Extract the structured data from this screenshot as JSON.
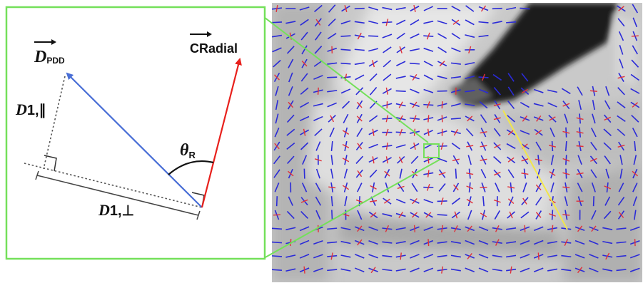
{
  "diagram": {
    "vector_pdd": {
      "main": "D",
      "sub": "PDD"
    },
    "vector_cradial": {
      "main": "CRadial"
    },
    "angle": {
      "main": "θ",
      "sub": "R"
    },
    "component_parallel": {
      "main": "D",
      "rest": "1,∥"
    },
    "component_perp": {
      "main": "D",
      "rest": "1,⊥"
    }
  },
  "colors": {
    "pdd_vector": "#4a6fd6",
    "cradial_vector": "#e8201c",
    "zoom_frame": "#74e05a",
    "yellow_line": "#f2e64a",
    "field_blue": "#2a2ad8",
    "field_red": "#e0303a"
  }
}
